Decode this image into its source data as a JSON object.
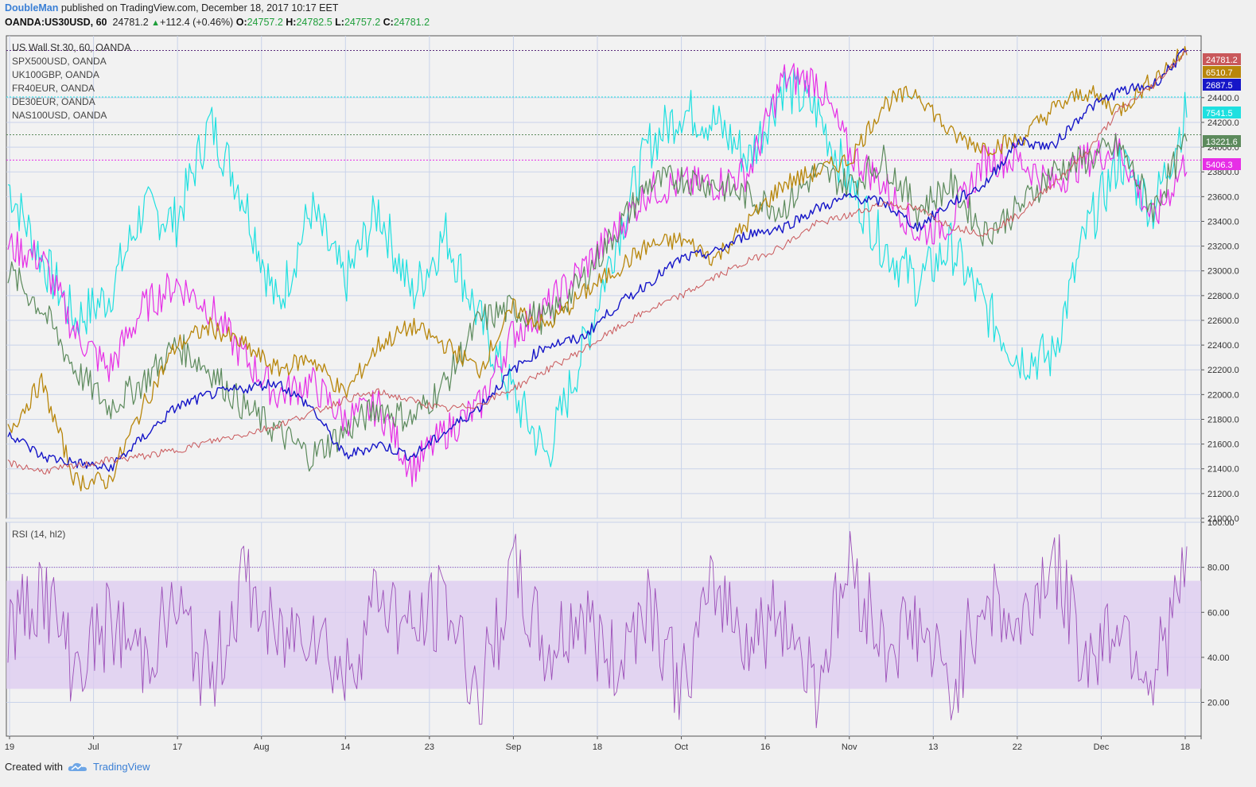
{
  "header": {
    "author": "DoubleMan",
    "published_text": " published on TradingView.com, December 18, 2017 10:17 EET",
    "symbol": "OANDA:US30USD, 60",
    "price": "24781.2",
    "change": "+112.4 (+0.46%)",
    "o_label": "O:",
    "o_value": "24757.2",
    "h_label": "H:",
    "h_value": "24782.5",
    "l_label": "L:",
    "l_value": "24757.2",
    "c_label": "C:",
    "c_value": "24781.2"
  },
  "legend": {
    "main": "US Wall St 30, 60, OANDA",
    "series": [
      "SPX500USD, OANDA",
      "UK100GBP, OANDA",
      "FR40EUR, OANDA",
      "DE30EUR, OANDA",
      "NAS100USD, OANDA"
    ]
  },
  "rsi_label": "RSI (14, hl2)",
  "footer": {
    "created_with": "Created with",
    "brand": "TradingView"
  },
  "colors": {
    "US30": "#c9585b",
    "SPX500": "#b8860b",
    "UK100": "#1616c8",
    "FR40": "#5c8a5c",
    "DE30": "#e62ee6",
    "NAS100": "#1ee0e0",
    "rsi": "#9c4fb8",
    "rsi_band": "#dcc9f0"
  },
  "chart_data": [
    {
      "type": "line",
      "title": "US Wall St 30, 60, OANDA",
      "x_ticks": [
        "19",
        "Jul",
        "17",
        "Aug",
        "14",
        "23",
        "Sep",
        "18",
        "Oct",
        "16",
        "Nov",
        "13",
        "22",
        "Dec",
        "18"
      ],
      "y_ticks": [
        "21000.0",
        "21200.0",
        "21400.0",
        "21600.0",
        "21800.0",
        "22000.0",
        "22200.0",
        "22400.0",
        "22600.0",
        "22800.0",
        "23000.0",
        "23200.0",
        "23400.0",
        "23600.0",
        "23800.0",
        "24000.0",
        "24200.0",
        "24400.0"
      ],
      "ylim": [
        21000,
        24900
      ],
      "series": [
        {
          "name": "US Wall St 30",
          "last": "24781.2",
          "color": "#c9585b",
          "values": [
            21450,
            21380,
            21420,
            21470,
            21500,
            21550,
            21620,
            21680,
            21750,
            21850,
            21960,
            22020,
            21950,
            21880,
            21920,
            22050,
            22200,
            22350,
            22520,
            22680,
            22800,
            22950,
            23080,
            23200,
            23380,
            23450,
            23550,
            23500,
            23360,
            23300,
            23450,
            23700,
            23950,
            24300,
            24500,
            24781
          ]
        },
        {
          "name": "SPX500USD, OANDA",
          "last": "6510.7",
          "color": "#b8860b",
          "values": [
            21700,
            22100,
            21300,
            21300,
            21900,
            22400,
            22550,
            22400,
            22200,
            22300,
            22000,
            22400,
            22550,
            22400,
            22200,
            22700,
            22550,
            22800,
            23000,
            23200,
            23250,
            23100,
            23400,
            23700,
            23800,
            23900,
            24350,
            24450,
            24100,
            24000,
            24050,
            24300,
            24450,
            24300,
            24550,
            24781
          ]
        },
        {
          "name": "UK100GBP, OANDA",
          "last": "2687.5",
          "color": "#1616c8",
          "values": [
            21700,
            21500,
            21450,
            21400,
            21650,
            21900,
            22000,
            22050,
            22100,
            21900,
            21500,
            21600,
            21500,
            21700,
            21900,
            22200,
            22400,
            22450,
            22700,
            22900,
            23100,
            23150,
            23300,
            23350,
            23500,
            23600,
            23550,
            23350,
            23550,
            23700,
            24050,
            24000,
            24300,
            24450,
            24500,
            24781
          ]
        },
        {
          "name": "FR40EUR, OANDA",
          "last": "13221.6",
          "color": "#5c8a5c",
          "values": [
            23000,
            22700,
            22200,
            21900,
            22100,
            22400,
            22200,
            21900,
            21700,
            21500,
            21700,
            21900,
            21800,
            22100,
            22600,
            22700,
            22600,
            22900,
            23300,
            23700,
            23750,
            23700,
            23600,
            23500,
            23800,
            23700,
            23900,
            23500,
            23700,
            23300,
            23500,
            23800,
            23900,
            24000,
            23500,
            24050
          ]
        },
        {
          "name": "DE30EUR, OANDA",
          "last": "5406.3",
          "color": "#e62ee6",
          "values": [
            23200,
            23100,
            22500,
            22200,
            22700,
            22900,
            22700,
            22300,
            22000,
            22100,
            21800,
            21900,
            21400,
            21700,
            21900,
            22500,
            22700,
            23000,
            23300,
            23650,
            23700,
            23700,
            23800,
            24550,
            24550,
            23950,
            23700,
            23300,
            23400,
            23900,
            23900,
            23700,
            23900,
            24000,
            23400,
            23900
          ]
        },
        {
          "name": "NAS100USD, OANDA",
          "last": "7541.5",
          "color": "#1ee0e0",
          "values": [
            23700,
            23100,
            22600,
            22800,
            23500,
            23400,
            24200,
            23600,
            22700,
            23500,
            22900,
            23500,
            22800,
            23300,
            22600,
            22000,
            21500,
            22300,
            23200,
            24000,
            24300,
            24200,
            23900,
            24500,
            24300,
            23700,
            23200,
            22900,
            23200,
            22700,
            22300,
            22300,
            23300,
            23900,
            23500,
            24300
          ]
        }
      ]
    },
    {
      "type": "line",
      "title": "RSI (14, hl2)",
      "y_ticks": [
        "20.00",
        "40.00",
        "60.00",
        "80.00",
        "100.00"
      ],
      "ylim": [
        5,
        100
      ],
      "band": [
        26,
        74
      ],
      "overbought": 80,
      "series": [
        {
          "name": "RSI",
          "color": "#9c4fb8",
          "values": [
            50,
            72,
            35,
            55,
            40,
            62,
            28,
            75,
            45,
            58,
            30,
            70,
            50,
            65,
            22,
            78,
            40,
            60,
            35,
            68,
            25,
            72,
            48,
            60,
            28,
            82,
            45,
            55,
            24,
            70,
            50,
            85,
            38,
            58,
            30,
            80
          ]
        }
      ]
    }
  ]
}
